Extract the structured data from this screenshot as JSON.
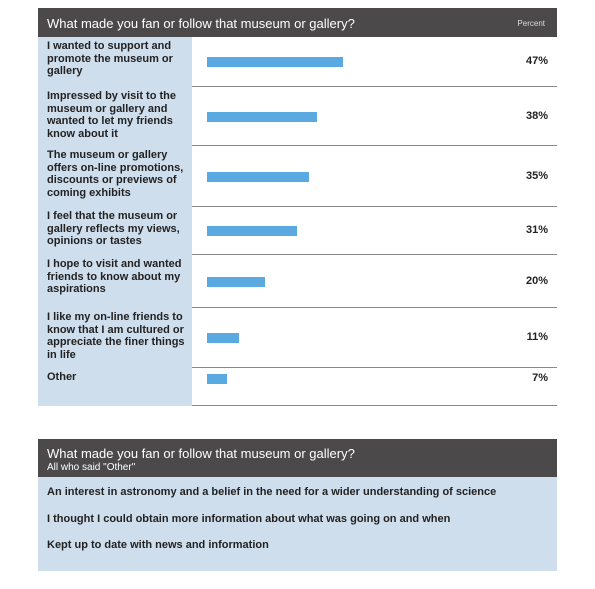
{
  "chart_data": {
    "type": "bar",
    "orientation": "horizontal",
    "title": "What made you fan or follow that museum or gallery?",
    "value_axis_label": "Percent",
    "categories": [
      "I wanted to support and promote the museum or gallery",
      "Impressed by visit to the museum or gallery and wanted to let my friends know about it",
      "The museum or gallery offers on-line promotions, discounts or previews of coming exhibits",
      "I feel that the museum or gallery reflects my views, opinions or tastes",
      "I hope to visit and wanted friends to know about my aspirations",
      "I like my on-line friends to know that I am cultured or appreciate the finer things in life",
      "Other"
    ],
    "values": [
      47,
      38,
      35,
      31,
      20,
      11,
      7
    ],
    "value_labels": [
      "47%",
      "38%",
      "35%",
      "31%",
      "20%",
      "11%",
      "7%"
    ],
    "color": "#5aa9e0"
  },
  "other_panel": {
    "title": "What made you fan or follow that museum or gallery?",
    "subtitle": "All who said \"Other\"",
    "responses": [
      "An interest in astronomy and a belief in the need for a wider understanding of science",
      "I thought I could obtain more information about what was going on and when",
      "Kept up to date with news and information"
    ]
  }
}
